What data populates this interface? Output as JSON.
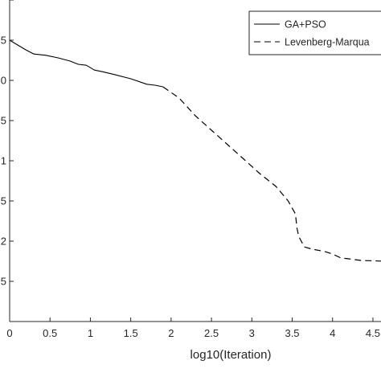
{
  "chart_data": {
    "type": "line",
    "xlabel": "log10(Iteration)",
    "ylabel": "",
    "xlim": [
      0,
      4.6
    ],
    "x_ticks": [
      0,
      0.5,
      1,
      1.5,
      2,
      2.5,
      3,
      3.5,
      4,
      4.5
    ],
    "x_tick_labels": [
      "0",
      "0.5",
      "1",
      "1.5",
      "2",
      "2.5",
      "3",
      "3.5",
      "4",
      "4.5"
    ],
    "y_tick_labels": [
      "",
      "5",
      "2",
      "5",
      "1",
      "5",
      "0",
      "5",
      ""
    ],
    "legend_position": "top-right",
    "grid": false,
    "series": [
      {
        "name": "GA+PSO",
        "style": "solid",
        "color": "#000000",
        "points": [
          [
            0,
            0.875
          ],
          [
            0.1,
            0.86
          ],
          [
            0.2,
            0.845
          ],
          [
            0.3,
            0.832
          ],
          [
            0.45,
            0.828
          ],
          [
            0.6,
            0.82
          ],
          [
            0.75,
            0.81
          ],
          [
            0.85,
            0.8
          ],
          [
            0.95,
            0.797
          ],
          [
            1.05,
            0.782
          ],
          [
            1.15,
            0.777
          ],
          [
            1.3,
            0.768
          ],
          [
            1.5,
            0.755
          ],
          [
            1.7,
            0.738
          ],
          [
            1.8,
            0.735
          ],
          [
            1.9,
            0.73
          ]
        ]
      },
      {
        "name": "Levenberg-Marqua",
        "style": "dashed",
        "color": "#000000",
        "points": [
          [
            1.9,
            0.73
          ],
          [
            2.1,
            0.695
          ],
          [
            2.3,
            0.64
          ],
          [
            2.5,
            0.595
          ],
          [
            2.7,
            0.55
          ],
          [
            2.9,
            0.505
          ],
          [
            3.1,
            0.46
          ],
          [
            3.3,
            0.42
          ],
          [
            3.45,
            0.375
          ],
          [
            3.54,
            0.335
          ],
          [
            3.56,
            0.29
          ],
          [
            3.58,
            0.265
          ],
          [
            3.65,
            0.232
          ],
          [
            3.75,
            0.225
          ],
          [
            3.9,
            0.218
          ],
          [
            4.0,
            0.21
          ],
          [
            4.1,
            0.198
          ],
          [
            4.2,
            0.195
          ],
          [
            4.35,
            0.19
          ],
          [
            4.6,
            0.188
          ]
        ]
      }
    ]
  }
}
